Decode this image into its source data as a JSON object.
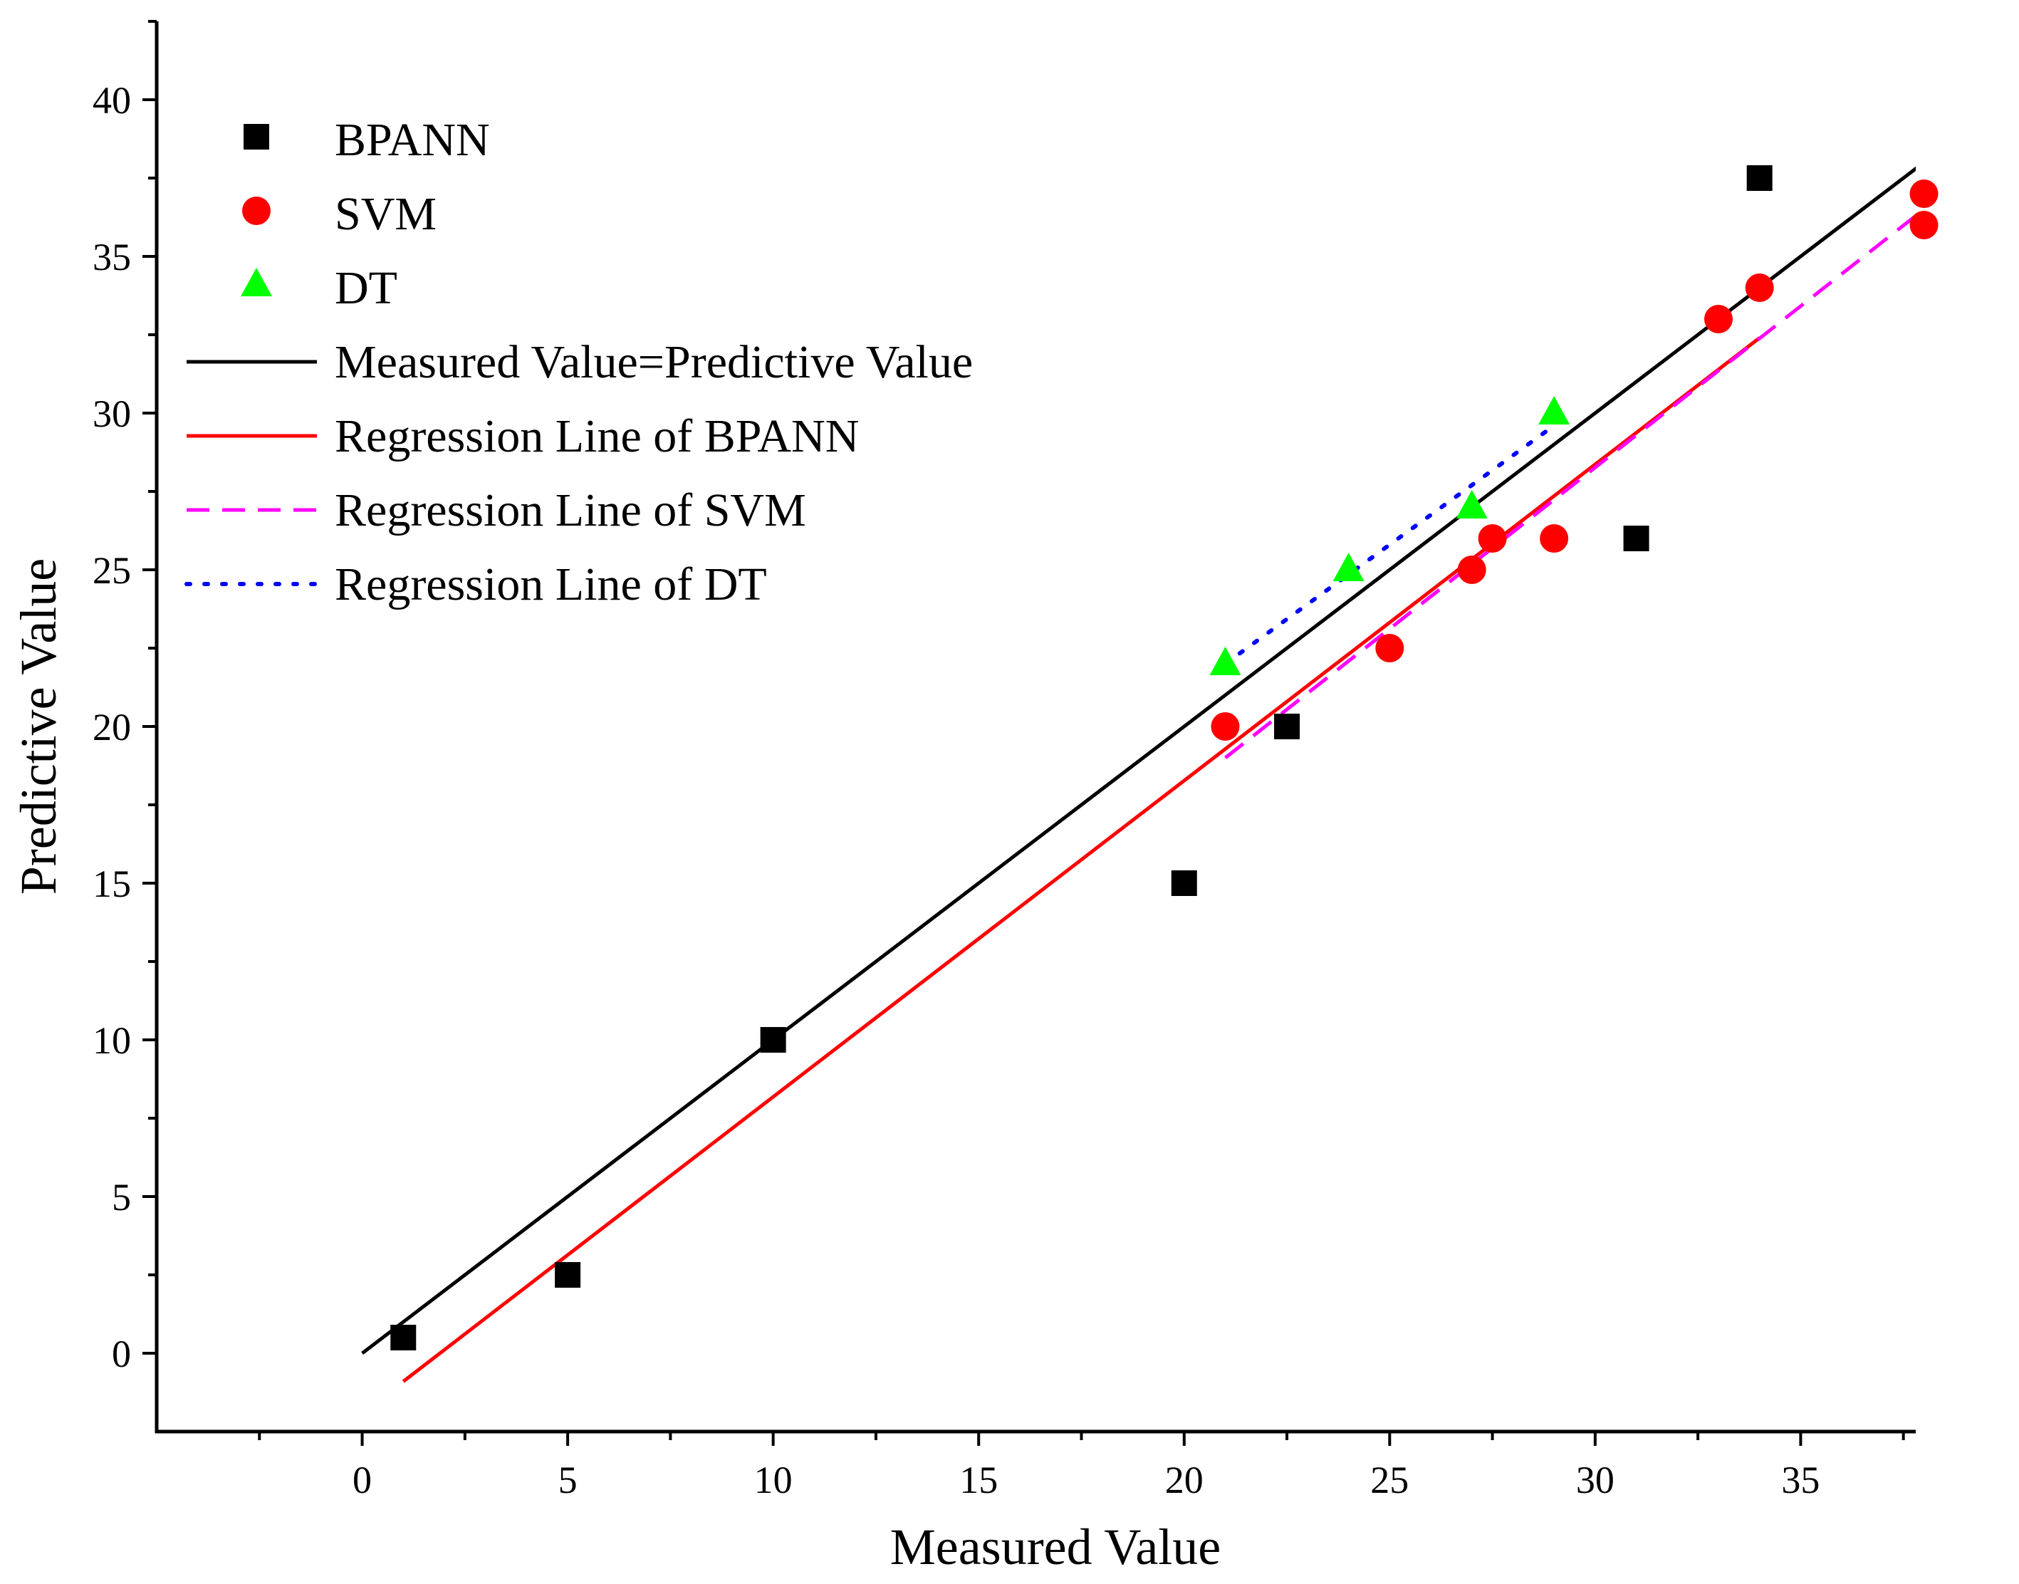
{
  "chart_data": {
    "type": "scatter",
    "title": "",
    "xlabel": "Measured Value",
    "ylabel": "Predictive Value",
    "xlim": [
      -5,
      37.8
    ],
    "ylim": [
      -2.5,
      42.5
    ],
    "x_ticks": [
      0,
      5,
      10,
      15,
      20,
      25,
      30,
      35
    ],
    "x_tick_labels": [
      "0",
      "5",
      "10",
      "15",
      "20",
      "25",
      "30",
      "35"
    ],
    "y_ticks": [
      0,
      5,
      10,
      15,
      20,
      25,
      30,
      35,
      40
    ],
    "y_tick_labels": [
      "0",
      "5",
      "10",
      "15",
      "20",
      "25",
      "30",
      "35",
      "40"
    ],
    "grid": false,
    "legend_position": "top-left",
    "series": [
      {
        "name": "BPANN",
        "kind": "points",
        "marker": "square",
        "color": "#000000",
        "points": [
          [
            1,
            0.5
          ],
          [
            5,
            2.5
          ],
          [
            10,
            10
          ],
          [
            20,
            15
          ],
          [
            22.5,
            20
          ],
          [
            31,
            26
          ],
          [
            34,
            37.5
          ]
        ]
      },
      {
        "name": "SVM",
        "kind": "points",
        "marker": "circle",
        "color": "#ff0000",
        "points": [
          [
            21,
            20
          ],
          [
            25,
            22.5
          ],
          [
            27,
            25
          ],
          [
            27.5,
            26
          ],
          [
            29,
            26
          ],
          [
            33,
            33
          ],
          [
            34,
            34
          ],
          [
            38,
            37
          ],
          [
            38,
            36
          ]
        ]
      },
      {
        "name": "DT",
        "kind": "points",
        "marker": "triangle",
        "color": "#00ff00",
        "points": [
          [
            21,
            22
          ],
          [
            24,
            25
          ],
          [
            27,
            27
          ],
          [
            29,
            30
          ]
        ]
      },
      {
        "name": "Measured Value=Predictive Value",
        "kind": "line",
        "style": "solid",
        "color": "#000000",
        "points": [
          [
            0,
            0
          ],
          [
            38.5,
            38.5
          ]
        ]
      },
      {
        "name": "Regression Line of BPANN",
        "kind": "line",
        "style": "solid",
        "color": "#ff0000",
        "points": [
          [
            1,
            -0.9
          ],
          [
            34,
            32.4
          ]
        ]
      },
      {
        "name": "Regression Line of SVM",
        "kind": "line",
        "style": "dashed",
        "color": "#ff00ff",
        "points": [
          [
            21,
            19
          ],
          [
            38,
            36.5
          ]
        ]
      },
      {
        "name": "Regression Line of DT",
        "kind": "line",
        "style": "dotted",
        "color": "#0000ff",
        "points": [
          [
            21,
            22
          ],
          [
            29,
            29.6
          ]
        ]
      }
    ]
  }
}
